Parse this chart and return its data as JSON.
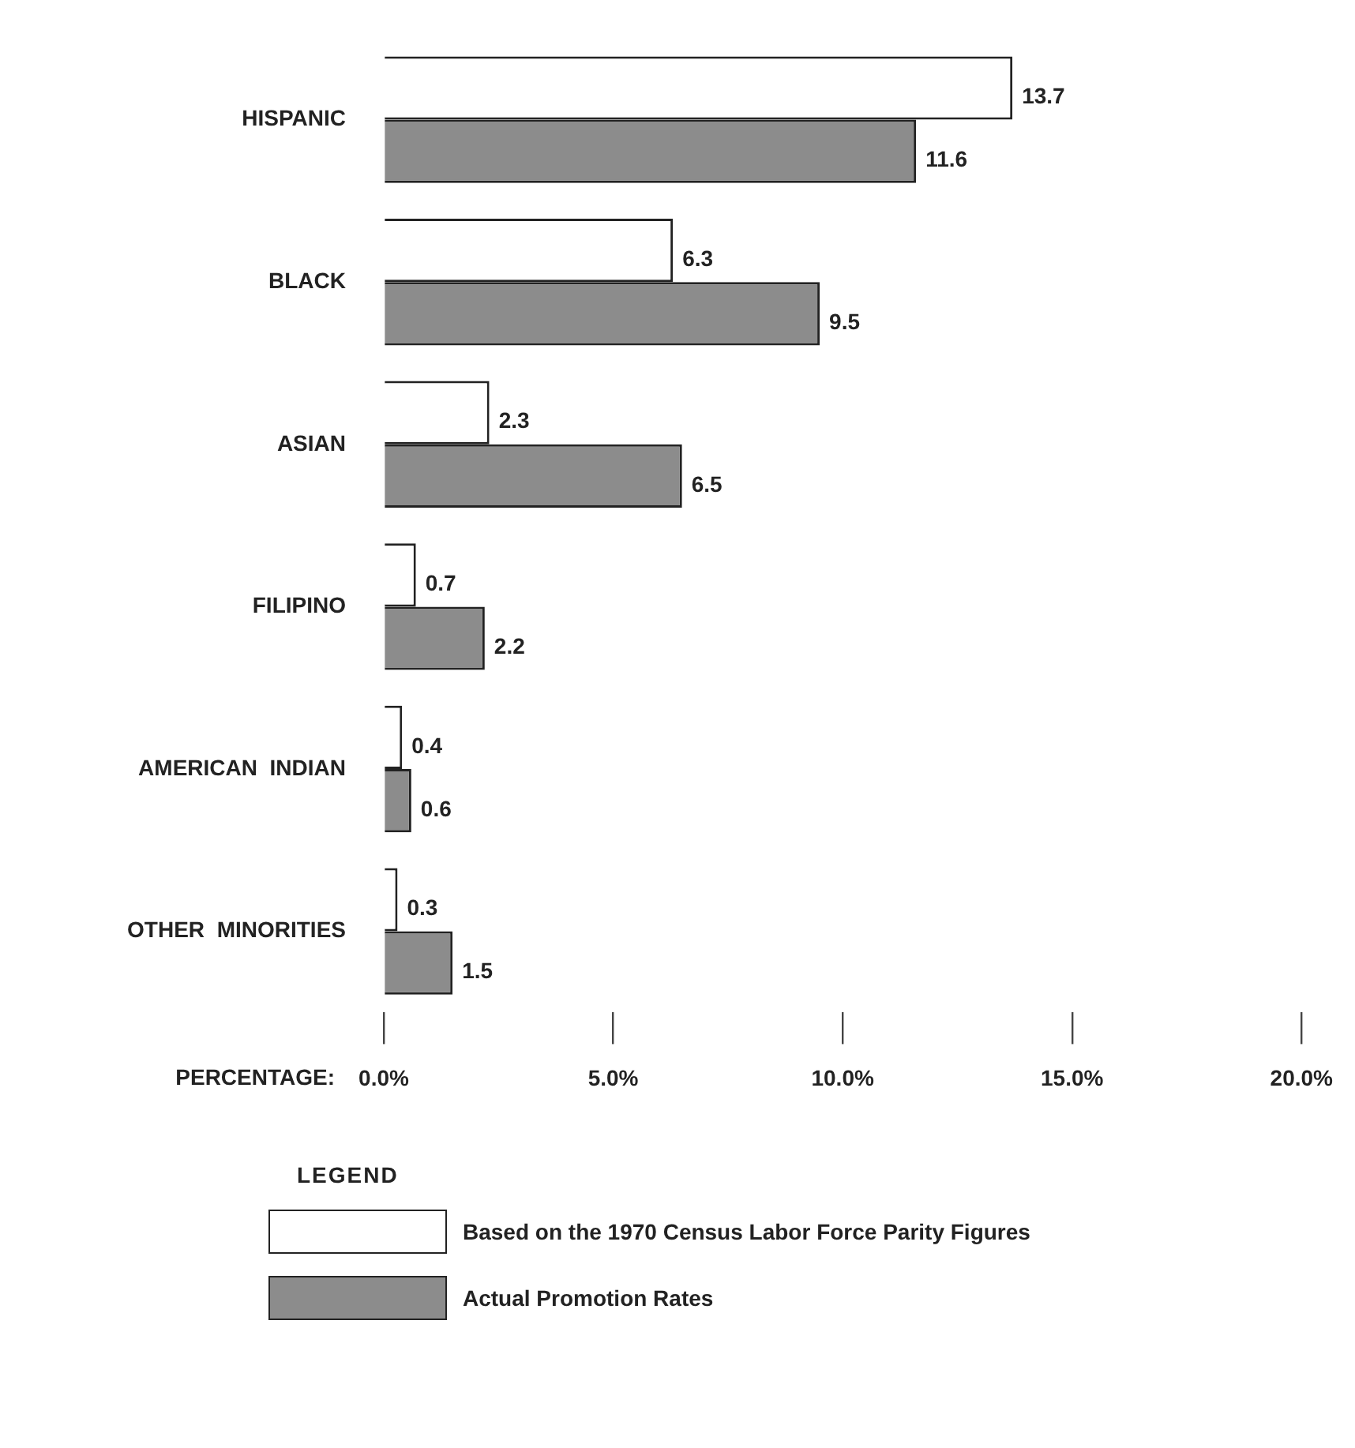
{
  "chart_data": {
    "type": "bar",
    "orientation": "horizontal",
    "categories": [
      "HISPANIC",
      "BLACK",
      "ASIAN",
      "FILIPINO",
      "AMERICAN  INDIAN",
      "OTHER  MINORITIES"
    ],
    "series": [
      {
        "name": "Based on the 1970 Census Labor Force Parity Figures",
        "color": "#ffffff",
        "values": [
          13.7,
          6.3,
          2.3,
          0.7,
          0.4,
          0.3
        ]
      },
      {
        "name": "Actual Promotion Rates",
        "color": "#8c8c8c",
        "values": [
          11.6,
          9.5,
          6.5,
          2.2,
          0.6,
          1.5
        ]
      }
    ],
    "xlabel": "PERCENTAGE:",
    "xlim": [
      0,
      20
    ],
    "xticks": [
      {
        "value": 0,
        "label": "0.0%"
      },
      {
        "value": 5,
        "label": "5.0%"
      },
      {
        "value": 10,
        "label": "10.0%"
      },
      {
        "value": 15,
        "label": "15.0%"
      },
      {
        "value": 20,
        "label": "20.0%"
      }
    ],
    "data_labels": true,
    "legend": "bottom",
    "legend_title": "LEGEND"
  }
}
